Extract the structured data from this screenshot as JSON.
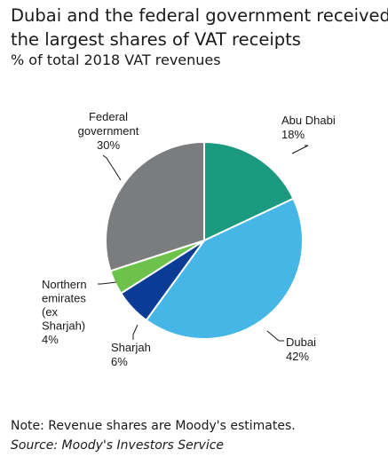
{
  "chart_data": {
    "type": "pie",
    "title": [
      "Dubai and the federal government received",
      "the largest shares of VAT receipts"
    ],
    "subtitle": "% of total 2018 VAT revenues",
    "slices": [
      {
        "name": "Abu Dhabi",
        "label_lines": [
          "Abu Dhabi",
          "18%"
        ],
        "value": 18,
        "color": "#1b9a7f"
      },
      {
        "name": "Dubai",
        "label_lines": [
          "Dubai",
          "42%"
        ],
        "value": 42,
        "color": "#45b6e6"
      },
      {
        "name": "Sharjah",
        "label_lines": [
          "Sharjah",
          "6%"
        ],
        "value": 6,
        "color": "#0a3c96"
      },
      {
        "name": "Northern emirates (ex Sharjah)",
        "label_lines": [
          "Northern",
          "emirates",
          "(ex",
          "Sharjah)",
          "4%"
        ],
        "value": 4,
        "color": "#6cc24a"
      },
      {
        "name": "Federal government",
        "label_lines": [
          "Federal",
          "government",
          "30%"
        ],
        "value": 30,
        "color": "#7a7c7e"
      }
    ],
    "start": "12 o'clock",
    "direction": "clockwise",
    "note": "Note: Revenue shares are Moody's estimates.",
    "source": "Source: Moody's Investors Service"
  }
}
